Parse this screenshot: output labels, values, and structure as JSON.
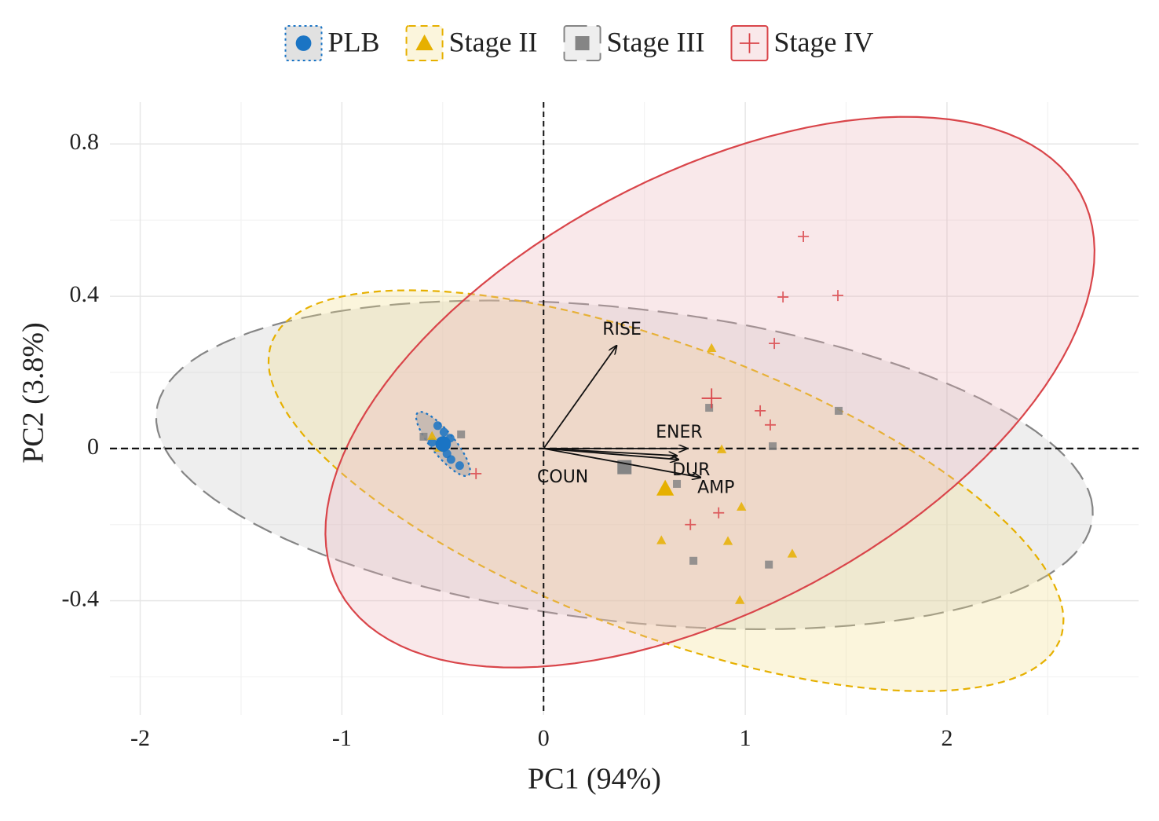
{
  "chart_data": {
    "type": "scatter",
    "x_label": "PC1 (94%)",
    "y_label": "PC2 (3.8%)",
    "xlim": [
      -2.15,
      2.95
    ],
    "ylim": [
      -0.7,
      0.91
    ],
    "xticks": [
      -2,
      -1,
      0,
      1,
      2
    ],
    "yticks": [
      -0.4,
      0,
      0.4,
      0.8
    ],
    "grid": true,
    "zero_lines": true,
    "legend": "top",
    "series": [
      {
        "name": "PLB",
        "color": "#1a74c4",
        "marker": "circle",
        "line": "dotted",
        "fill": "#9a9a9a",
        "x": [
          -0.525,
          -0.494,
          -0.463,
          -0.553,
          -0.498,
          -0.479,
          -0.459,
          -0.416
        ],
        "y": [
          0.06,
          0.043,
          0.027,
          0.016,
          0.002,
          -0.014,
          -0.029,
          -0.045
        ],
        "centroid": {
          "x": -0.498,
          "y": 0.012
        },
        "ellipse": {
          "center": [
            -0.498,
            0.012
          ],
          "a": [
            0.126,
            -0.082
          ],
          "b": [
            0.045,
            0.0196
          ]
        }
      },
      {
        "name": "Stage II",
        "color": "#e6b000",
        "marker": "triangle",
        "line": "dashed",
        "fill": "#f3df8a",
        "x": [
          0.833,
          0.883,
          0.981,
          0.914,
          0.584,
          1.233,
          0.973,
          -0.553,
          -0.518
        ],
        "y": [
          0.264,
          -0.002,
          -0.153,
          -0.243,
          -0.241,
          -0.276,
          -0.398,
          0.033,
          0.002
        ],
        "centroid": {
          "x": 0.603,
          "y": -0.105
        },
        "ellipse": {
          "center": [
            0.607,
            -0.111
          ],
          "a": [
            1.957,
            -0.291
          ],
          "b": [
            -0.233,
            0.439
          ]
        }
      },
      {
        "name": "Stage III",
        "color": "#858585",
        "marker": "square",
        "line": "longdash",
        "fill": "#c8c8c8",
        "x": [
          0.821,
          1.463,
          1.136,
          0.661,
          0.743,
          1.117,
          -0.409,
          -0.595
        ],
        "y": [
          0.107,
          0.099,
          0.006,
          -0.093,
          -0.295,
          -0.305,
          0.037,
          0.031
        ],
        "centroid": {
          "x": 0.401,
          "y": -0.049
        },
        "ellipse": {
          "center": [
            0.401,
            -0.043
          ],
          "a": [
            2.321,
            -0.112
          ],
          "b": [
            -0.0716,
            0.417
          ]
        }
      },
      {
        "name": "Stage IV",
        "color": "#d9454a",
        "marker": "plus",
        "line": "solid",
        "fill": "#eab4bb",
        "x": [
          1.288,
          1.459,
          1.187,
          1.144,
          1.074,
          1.124,
          0.868,
          0.728,
          -0.335
        ],
        "y": [
          0.557,
          0.402,
          0.398,
          0.276,
          0.099,
          0.062,
          -0.169,
          -0.2,
          -0.066
        ],
        "centroid": {
          "x": 0.833,
          "y": 0.132
        },
        "ellipse": {
          "center": [
            0.825,
            0.148
          ],
          "a": [
            1.838,
            0.521
          ],
          "b": [
            -0.507,
            0.502
          ]
        }
      }
    ],
    "loadings": {
      "names": [
        "RISE",
        "ENER",
        "DUR",
        "AMP",
        "COUN"
      ],
      "x": [
        0.362,
        0.712,
        0.669,
        0.778,
        0.661
      ],
      "y": [
        0.27,
        0.0,
        -0.029,
        -0.076,
        -0.019
      ]
    }
  }
}
